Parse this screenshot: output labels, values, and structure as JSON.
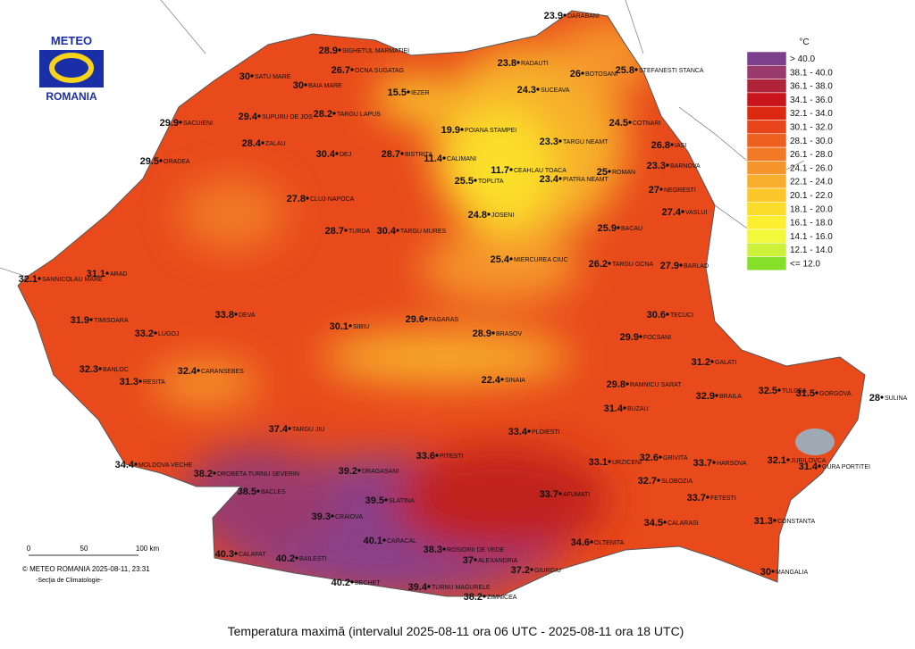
{
  "header": {
    "logo_top": "METEO",
    "logo_bottom": "ROMANIA"
  },
  "title": "Temperatura maximă (intervalul 2025-08-11 ora 06 UTC - 2025-08-11 ora 18 UTC)",
  "legend": {
    "unit": "°C",
    "items": [
      {
        "label": "> 40.0",
        "color": "#7b3f8c"
      },
      {
        "label": "38.1 - 40.0",
        "color": "#9a3b6e"
      },
      {
        "label": "36.1 - 38.0",
        "color": "#b0243a"
      },
      {
        "label": "34.1 - 36.0",
        "color": "#c8141a"
      },
      {
        "label": "32.1 - 34.0",
        "color": "#dc2a12"
      },
      {
        "label": "30.1 - 32.0",
        "color": "#e8461a"
      },
      {
        "label": "28.1 - 30.0",
        "color": "#ee6020"
      },
      {
        "label": "26.1 - 28.0",
        "color": "#f27a26"
      },
      {
        "label": "24.1 - 26.0",
        "color": "#f5952c"
      },
      {
        "label": "22.1 - 24.0",
        "color": "#f7ae2c"
      },
      {
        "label": "20.1 - 22.0",
        "color": "#f9c72a"
      },
      {
        "label": "18.1 - 20.0",
        "color": "#fbdc2a"
      },
      {
        "label": "16.1 - 18.0",
        "color": "#fcee30"
      },
      {
        "label": "14.1 - 16.0",
        "color": "#f4f83a"
      },
      {
        "label": "12.1 - 14.0",
        "color": "#cdf03a"
      },
      {
        "label": "<= 12.0",
        "color": "#86e02a"
      }
    ]
  },
  "scale": {
    "ticks": [
      "0",
      "50",
      "100 km"
    ]
  },
  "credits": {
    "copyright": "© METEO ROMANIA 2025-08-11, 23:31",
    "section": "-Secţia de Climatologie-"
  },
  "stations": [
    {
      "name": "DARABANI",
      "value": 23.9
    },
    {
      "name": "RADAUTI",
      "value": 23.8
    },
    {
      "name": "BOTOSANI",
      "value": 26
    },
    {
      "name": "STEFANESTI STANCA",
      "value": 25.8
    },
    {
      "name": "SUCEAVA",
      "value": 24.3
    },
    {
      "name": "SIGHETUL MARMATIEI",
      "value": 28.9
    },
    {
      "name": "OCNA SUGATAG",
      "value": 26.7
    },
    {
      "name": "SATU MARE",
      "value": 30
    },
    {
      "name": "BAIA MARE",
      "value": 30
    },
    {
      "name": "IEZER",
      "value": 15.5
    },
    {
      "name": "TARGU LAPUS",
      "value": 28.2
    },
    {
      "name": "SUPURU DE JOS",
      "value": 29.4
    },
    {
      "name": "SACUIENI",
      "value": 29.9
    },
    {
      "name": "POIANA STAMPEI",
      "value": 19.9
    },
    {
      "name": "COTNARI",
      "value": 24.5
    },
    {
      "name": "TARGU NEAMT",
      "value": 23.3
    },
    {
      "name": "IASI",
      "value": 26.8
    },
    {
      "name": "ZALAU",
      "value": 28.4
    },
    {
      "name": "DEJ",
      "value": 30.4
    },
    {
      "name": "BISTRITA",
      "value": 28.7
    },
    {
      "name": "CALIMANI",
      "value": 11.4
    },
    {
      "name": "ORADEA",
      "value": 29.5
    },
    {
      "name": "ROMAN",
      "value": 25
    },
    {
      "name": "BARNOVA",
      "value": 23.3
    },
    {
      "name": "CEAHLAU TOACA",
      "value": 11.7
    },
    {
      "name": "PIATRA NEAMT",
      "value": 23.4
    },
    {
      "name": "NEGRESTI",
      "value": 27
    },
    {
      "name": "TOPLITA",
      "value": 25.5
    },
    {
      "name": "VASLUI",
      "value": 27.4
    },
    {
      "name": "CLUJ-NAPOCA",
      "value": 27.8
    },
    {
      "name": "JOSENI",
      "value": 24.8
    },
    {
      "name": "BACAU",
      "value": 25.9
    },
    {
      "name": "TURDA",
      "value": 28.7
    },
    {
      "name": "TARGU MURES",
      "value": 30.4
    },
    {
      "name": "MIERCUREA CIUC",
      "value": 25.4
    },
    {
      "name": "TARGU OCNA",
      "value": 26.2
    },
    {
      "name": "BARLAD",
      "value": 27.9
    },
    {
      "name": "ARAD",
      "value": 31.1
    },
    {
      "name": "SANNICOLAU MARE",
      "value": 32.1
    },
    {
      "name": "DEVA",
      "value": 33.8
    },
    {
      "name": "SIBIU",
      "value": 30.1
    },
    {
      "name": "FAGARAS",
      "value": 29.6
    },
    {
      "name": "BRASOV",
      "value": 28.9
    },
    {
      "name": "TIMISOARA",
      "value": 31.9
    },
    {
      "name": "FOCSANI",
      "value": 29.9
    },
    {
      "name": "TECUCI",
      "value": 30.6
    },
    {
      "name": "GALATI",
      "value": 31.2
    },
    {
      "name": "TULCEA",
      "value": 32.5
    },
    {
      "name": "SULINA",
      "value": 28
    },
    {
      "name": "GORGOVA",
      "value": 31.5
    },
    {
      "name": "LUGOJ",
      "value": 33.2
    },
    {
      "name": "BANLOC",
      "value": 32.3
    },
    {
      "name": "RESITA",
      "value": 31.3
    },
    {
      "name": "CARANSEBES",
      "value": 32.4
    },
    {
      "name": "RAMNICU SARAT",
      "value": 29.8
    },
    {
      "name": "SINAIA",
      "value": 22.4
    },
    {
      "name": "BUZAU",
      "value": 31.4
    },
    {
      "name": "BRAILA",
      "value": 32.9
    },
    {
      "name": "MOLDOVA VECHE",
      "value": 34.4
    },
    {
      "name": "DROBETA TURNU SEVERIN",
      "value": 38.2
    },
    {
      "name": "BACLES",
      "value": 38.5
    },
    {
      "name": "CRAIOVA",
      "value": 39.3
    },
    {
      "name": "SLATINA",
      "value": 39.5
    },
    {
      "name": "DRAGASANI",
      "value": 39.2
    },
    {
      "name": "CARACAL",
      "value": 40.1
    },
    {
      "name": "CALAFAT",
      "value": 40.3
    },
    {
      "name": "BAILESTI",
      "value": 40.2
    },
    {
      "name": "BECHET",
      "value": 40.2
    },
    {
      "name": "TURNU MAGURELE",
      "value": 39.4
    },
    {
      "name": "ALEXANDRIA",
      "value": 37
    },
    {
      "name": "GIURGIU",
      "value": 37.2
    },
    {
      "name": "ZIMNICEA",
      "value": 38.2
    },
    {
      "name": "ROSIORII DE VEDE",
      "value": 38.3
    },
    {
      "name": "PITESTI",
      "value": 33.6
    },
    {
      "name": "AFUMATI",
      "value": 33.7
    },
    {
      "name": "URZICENI",
      "value": 33.1
    },
    {
      "name": "SLOBOZIA",
      "value": 32.7
    },
    {
      "name": "GRIVITA",
      "value": 32.6
    },
    {
      "name": "FETESTI",
      "value": 33.7
    },
    {
      "name": "CALARASI",
      "value": 34.5
    },
    {
      "name": "CONSTANTA",
      "value": 31.3
    },
    {
      "name": "MANGALIA",
      "value": 30
    },
    {
      "name": "HARSOVA",
      "value": 33.7
    },
    {
      "name": "JURILOVCA",
      "value": 32.1
    },
    {
      "name": "GURA PORTITEI",
      "value": 31.4
    },
    {
      "name": "TARGU JIU",
      "value": 37.4
    },
    {
      "name": "OLTENITA",
      "value": 34.6
    },
    {
      "name": "PLOIESTI",
      "value": 33.4
    }
  ]
}
